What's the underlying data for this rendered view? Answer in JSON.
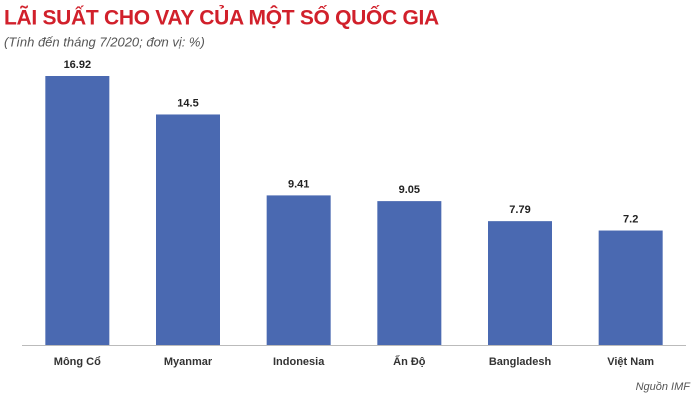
{
  "chart_data": {
    "type": "bar",
    "title": "LÃI SUẤT CHO VAY CỦA MỘT SỐ QUỐC GIA",
    "subtitle": "(Tính đến tháng 7/2020; đơn vị: %)",
    "source": "Nguồn IMF",
    "categories": [
      "Mông Cổ",
      "Myanmar",
      "Indonesia",
      "Ấn Độ",
      "Bangladesh",
      "Việt Nam"
    ],
    "values": [
      16.92,
      14.5,
      9.41,
      9.05,
      7.79,
      7.2
    ],
    "color": "#4a69b1"
  }
}
